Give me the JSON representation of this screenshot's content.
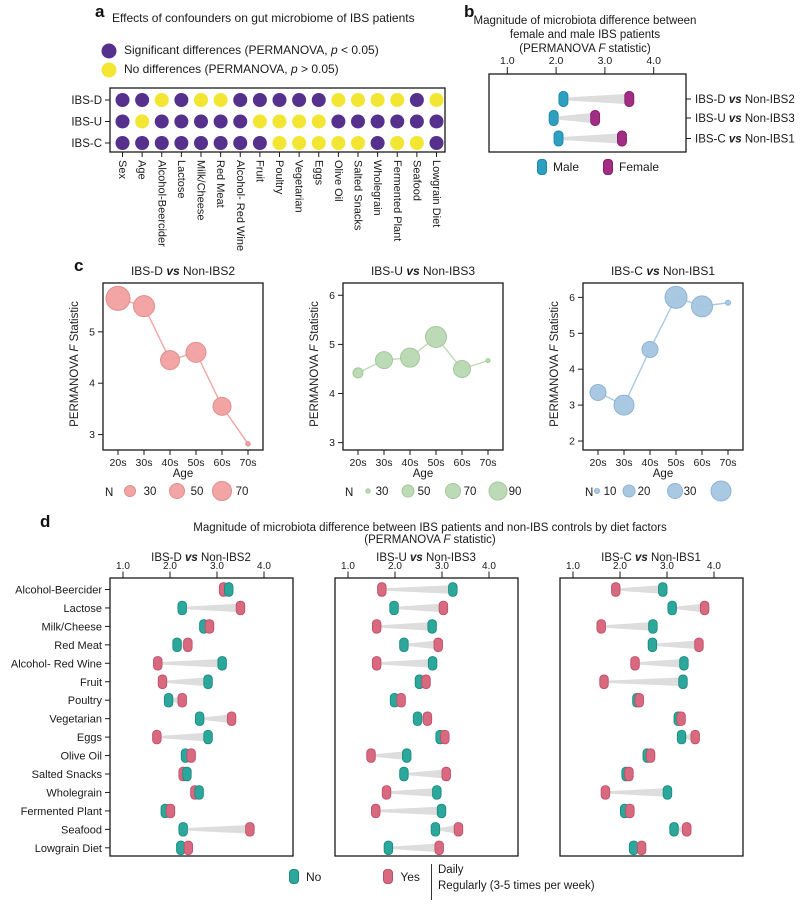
{
  "colors": {
    "significant": "#56308d",
    "not_significant": "#f2e632",
    "male": "#2da0c2",
    "male_stroke": "#1f86a8",
    "female": "#a12d84",
    "female_stroke": "#871f6e",
    "no": "#2ba89b",
    "no_stroke": "#1d8a80",
    "yes": "#d8697f",
    "yes_stroke": "#c05068",
    "connector": "#d9d9d9",
    "c1_fill": "#f2a0a0",
    "c1_stroke": "#e08d8d",
    "c2_fill": "#b9d8b2",
    "c2_stroke": "#a3c79a",
    "c3_fill": "#a4c6e1",
    "c3_stroke": "#8fb3d3"
  },
  "panel_a": {
    "label": "a",
    "title": "Effects of confounders on gut microbiome of IBS patients",
    "legend": [
      {
        "pre": "Significant differences (PERMANOVA, ",
        "it": "p",
        "post": " < 0.05)"
      },
      {
        "pre": "No differences (PERMANOVA, ",
        "it": "p",
        "post": " > 0.05)"
      }
    ]
  },
  "panel_b": {
    "label": "b",
    "title_line1": "Magnitude of microbiota difference between",
    "title_line2": "female and male IBS patients",
    "title_line3": {
      "pre": "(PERMANOVA ",
      "it": "F",
      "post": " statistic)"
    },
    "legend": {
      "male": "Male",
      "female": "Female"
    }
  },
  "panel_c": {
    "label": "c",
    "ylabel": {
      "pre": "PERMANOVA ",
      "it": "F",
      "post": " Statistic"
    },
    "xlabel": "Age",
    "size_legend_label": "N"
  },
  "panel_d": {
    "label": "d",
    "title_line1": "Magnitude of microbiota difference between IBS patients and non-IBS controls by diet factors",
    "title_line2": {
      "pre": "(PERMANOVA ",
      "it": "F",
      "post": " statistic)"
    },
    "categories": [
      "Alcohol-Beercider",
      "Lactose",
      "Milk/Cheese",
      "Red Meat",
      "Alcohol- Red Wine",
      "Fruit",
      "Poultry",
      "Vegetarian",
      "Eggs",
      "Olive Oil",
      "Salted Snacks",
      "Wholegrain",
      "Fermented Plant",
      "Seafood",
      "Lowgrain Diet"
    ],
    "legend": {
      "no": "No",
      "yes": "Yes",
      "freq1": "Daily",
      "freq2": "Regularly (3-5 times per week)"
    }
  },
  "chart_data": [
    {
      "id": "a_matrix",
      "type": "dot-matrix",
      "rows": [
        "IBS-D",
        "IBS-U",
        "IBS-C"
      ],
      "columns": [
        "Sex",
        "Age",
        "Alcohol-Beercider",
        "Lactose",
        "Milk/Cheese",
        "Red Meat",
        "Alcohol- Red Wine",
        "Fruit",
        "Poultry",
        "Vegetarian",
        "Eggs",
        "Olive Oil",
        "Salted Snacks",
        "Wholegrain",
        "Fermented Plant",
        "Seafood",
        "Lowgrain Diet"
      ],
      "significant": [
        [
          1,
          1,
          0,
          1,
          0,
          0,
          1,
          1,
          1,
          1,
          1,
          0,
          0,
          0,
          0,
          1,
          0
        ],
        [
          1,
          0,
          1,
          1,
          1,
          1,
          1,
          0,
          0,
          0,
          0,
          1,
          1,
          1,
          1,
          1,
          1
        ],
        [
          1,
          1,
          1,
          1,
          1,
          1,
          1,
          1,
          0,
          0,
          0,
          0,
          0,
          1,
          0,
          0,
          1
        ]
      ]
    },
    {
      "id": "b_dumbbell",
      "type": "dumbbell",
      "xticks": [
        "1.0",
        "2.0",
        "3.0",
        "4.0"
      ],
      "xrange": [
        1.0,
        4.0
      ],
      "rows": [
        {
          "label": {
            "pre": "IBS-D ",
            "vs": "vs",
            "post": " Non-IBS2"
          },
          "male": 2.15,
          "female": 3.5
        },
        {
          "label": {
            "pre": "IBS-U ",
            "vs": "vs",
            "post": " Non-IBS3"
          },
          "male": 1.95,
          "female": 2.8
        },
        {
          "label": {
            "pre": "IBS-C ",
            "vs": "vs",
            "post": " Non-IBS1"
          },
          "male": 2.05,
          "female": 3.35
        }
      ]
    },
    {
      "id": "c1",
      "type": "bubble-line",
      "title": {
        "pre": "IBS-D ",
        "vs": "vs",
        "post": " Non-IBS2"
      },
      "x": [
        "20s",
        "30s",
        "40s",
        "50s",
        "60s",
        "70s"
      ],
      "f_statistic": [
        5.65,
        5.5,
        4.45,
        4.6,
        3.55,
        2.82
      ],
      "n": [
        70,
        55,
        45,
        48,
        40,
        5
      ],
      "r": [
        12,
        10.5,
        9.5,
        10,
        9,
        2.2
      ],
      "ydomain": [
        2.7,
        5.95
      ],
      "yticks": [
        3,
        4,
        5
      ],
      "size_legend": [
        {
          "n": "30",
          "r": 5.5
        },
        {
          "n": "50",
          "r": 7.5
        },
        {
          "n": "70",
          "r": 9.5
        }
      ]
    },
    {
      "id": "c2",
      "type": "bubble-line",
      "title": {
        "pre": "IBS-U ",
        "vs": "vs",
        "post": " Non-IBS3"
      },
      "x": [
        "20s",
        "30s",
        "40s",
        "50s",
        "60s",
        "70s"
      ],
      "f_statistic": [
        4.42,
        4.68,
        4.73,
        5.15,
        4.5,
        4.67
      ],
      "n": [
        20,
        55,
        70,
        85,
        55,
        5
      ],
      "r": [
        5,
        8.5,
        9.5,
        10.5,
        8.5,
        2
      ],
      "ydomain": [
        2.85,
        6.25
      ],
      "yticks": [
        3,
        4,
        5,
        6
      ],
      "size_legend": [
        {
          "n": "30",
          "r": 2.2
        },
        {
          "n": "50",
          "r": 6
        },
        {
          "n": "70",
          "r": 7.5
        },
        {
          "n": "90",
          "r": 9
        }
      ]
    },
    {
      "id": "c3",
      "type": "bubble-line",
      "title": {
        "pre": "IBS-C ",
        "vs": "vs",
        "post": " Non-IBS1"
      },
      "x": [
        "20s",
        "30s",
        "40s",
        "50s",
        "60s",
        "70s"
      ],
      "f_statistic": [
        3.35,
        3.0,
        4.55,
        6.0,
        5.75,
        5.85
      ],
      "n": [
        15,
        22,
        15,
        28,
        25,
        3
      ],
      "r": [
        8,
        10,
        8,
        11,
        10.5,
        2.5
      ],
      "ydomain": [
        1.75,
        6.4
      ],
      "yticks": [
        2,
        3,
        4,
        5,
        6
      ],
      "size_legend": [
        {
          "n": "10",
          "r": 2.5
        },
        {
          "n": "20",
          "r": 6
        },
        {
          "n": "30",
          "r": 7.5
        },
        {
          "n": "",
          "r": 10
        }
      ]
    },
    {
      "id": "d1",
      "type": "diet-dumbbell",
      "title": {
        "pre": "IBS-D ",
        "vs": "vs",
        "post": " Non-IBS2"
      },
      "xticks": [
        "1.0",
        "2.0",
        "3.0",
        "4.0"
      ],
      "rows": [
        {
          "no": 3.25,
          "yes": 3.14
        },
        {
          "no": 2.26,
          "yes": 3.5
        },
        {
          "no": 2.72,
          "yes": 2.84
        },
        {
          "no": 2.15,
          "yes": 2.38
        },
        {
          "no": 3.11,
          "yes": 1.74
        },
        {
          "no": 2.81,
          "yes": 1.84
        },
        {
          "no": 1.97,
          "yes": 2.26
        },
        {
          "no": 2.63,
          "yes": 3.31
        },
        {
          "no": 2.81,
          "yes": 1.72
        },
        {
          "no": 2.33,
          "yes": 2.45
        },
        {
          "no": 2.36,
          "yes": 2.28
        },
        {
          "no": 2.62,
          "yes": 2.53
        },
        {
          "no": 1.9,
          "yes": 2.01
        },
        {
          "no": 2.28,
          "yes": 3.7
        },
        {
          "no": 2.23,
          "yes": 2.39
        }
      ]
    },
    {
      "id": "d2",
      "type": "diet-dumbbell",
      "title": {
        "pre": "IBS-U ",
        "vs": "vs",
        "post": " Non-IBS3"
      },
      "xticks": [
        "1.0",
        "2.0",
        "3.0",
        "4.0"
      ],
      "rows": [
        {
          "no": 3.23,
          "yes": 1.72
        },
        {
          "no": 1.98,
          "yes": 3.03
        },
        {
          "no": 2.79,
          "yes": 1.61
        },
        {
          "no": 2.19,
          "yes": 2.92
        },
        {
          "no": 2.8,
          "yes": 1.61
        },
        {
          "no": 2.52,
          "yes": 2.66
        },
        {
          "no": 1.99,
          "yes": 2.13
        },
        {
          "no": 2.48,
          "yes": 2.69
        },
        {
          "no": 2.96,
          "yes": 3.06
        },
        {
          "no": 2.25,
          "yes": 1.49
        },
        {
          "no": 2.19,
          "yes": 3.09
        },
        {
          "no": 2.89,
          "yes": 1.82
        },
        {
          "no": 2.99,
          "yes": 1.59
        },
        {
          "no": 2.86,
          "yes": 3.35
        },
        {
          "no": 1.86,
          "yes": 2.94
        }
      ]
    },
    {
      "id": "d3",
      "type": "diet-dumbbell",
      "title": {
        "pre": "IBS-C ",
        "vs": "vs",
        "post": " Non-IBS1"
      },
      "xticks": [
        "1.0",
        "2.0",
        "3.0",
        "4.0"
      ],
      "rows": [
        {
          "no": 2.91,
          "yes": 1.91
        },
        {
          "no": 3.11,
          "yes": 3.8
        },
        {
          "no": 2.7,
          "yes": 1.6
        },
        {
          "no": 2.69,
          "yes": 3.68
        },
        {
          "no": 3.36,
          "yes": 2.32
        },
        {
          "no": 3.34,
          "yes": 1.66
        },
        {
          "no": 2.36,
          "yes": 2.41
        },
        {
          "no": 3.24,
          "yes": 3.3
        },
        {
          "no": 3.31,
          "yes": 3.6
        },
        {
          "no": 2.58,
          "yes": 2.65
        },
        {
          "no": 2.13,
          "yes": 2.19
        },
        {
          "no": 3.01,
          "yes": 1.69
        },
        {
          "no": 2.1,
          "yes": 2.21
        },
        {
          "no": 3.15,
          "yes": 3.42
        },
        {
          "no": 2.29,
          "yes": 2.46
        }
      ]
    }
  ]
}
